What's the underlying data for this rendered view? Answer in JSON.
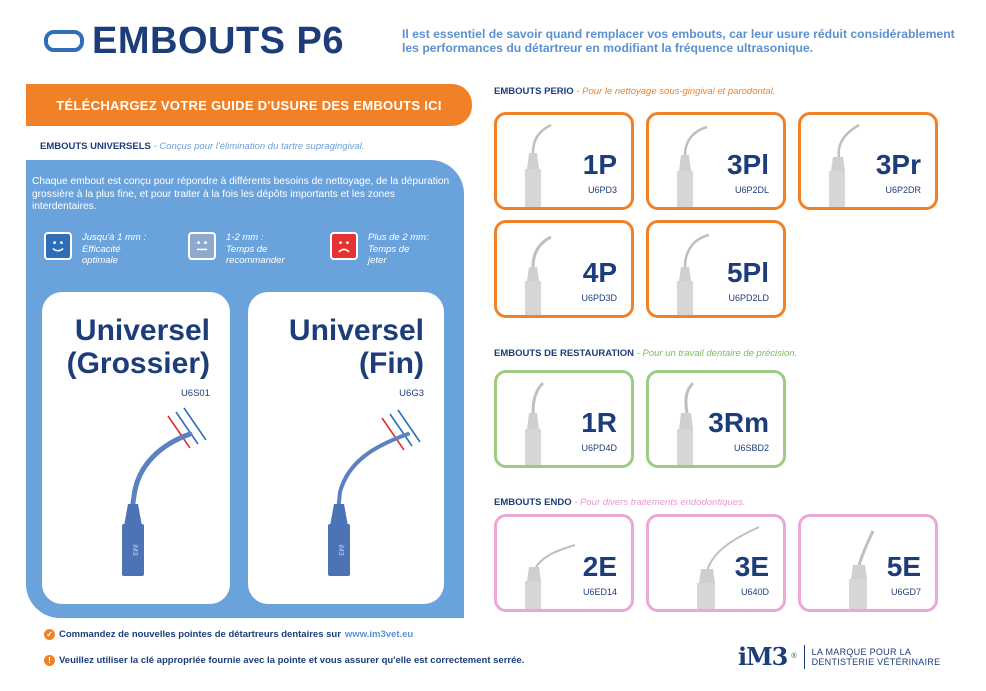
{
  "header": {
    "title": "EMBOUTS P6",
    "intro": "Il est essentiel de savoir quand remplacer vos embouts, car leur usure réduit considérablement les performances du détartreur en modifiant la fréquence ultrasonique."
  },
  "download_button": "TÉLÉCHARGEZ VOTRE GUIDE D'USURE DES EMBOUTS ICI",
  "universal": {
    "heading": "EMBOUTS UNIVERSELS",
    "subheading": "- Conçus pour l'élimination du tartre supragingival.",
    "description": "Chaque embout est conçu pour répondre à différents besoins de nettoyage, de la dépuration grossière à la plus fine, et pour traiter à la fois les dépôts importants et les zones interdentaires.",
    "wear_levels": [
      {
        "line1": "Jusqu'à 1 mm :",
        "line2": "Efficacité",
        "line3": "optimale",
        "color": "#2f6fb7"
      },
      {
        "line1": "1-2 mm :",
        "line2": "Temps de",
        "line3": "recommander",
        "color": "#8fa9cc"
      },
      {
        "line1": "Plus de 2 mm:",
        "line2": "Temps de",
        "line3": "jeter",
        "color": "#e53232"
      }
    ],
    "cards": [
      {
        "line1": "Universel",
        "line2": "(Grossier)",
        "code": "U6S01",
        "engraving": "iM3"
      },
      {
        "line1": "Universel",
        "line2": "(Fin)",
        "code": "U6G3",
        "engraving": "iM3"
      }
    ]
  },
  "perio": {
    "heading": "EMBOUTS PERIO",
    "subheading": "- Pour le nettoyage sous-gingival et parodontal.",
    "tips": [
      {
        "name": "1P",
        "code": "U6PD3"
      },
      {
        "name": "3Pl",
        "code": "U6P2DL"
      },
      {
        "name": "3Pr",
        "code": "U6P2DR"
      },
      {
        "name": "4P",
        "code": "U6PD3D"
      },
      {
        "name": "5Pl",
        "code": "U6PD2LD"
      }
    ]
  },
  "restoration": {
    "heading": "EMBOUTS DE RESTAURATION",
    "subheading": " - Pour un travail dentaire de précision.",
    "tips": [
      {
        "name": "1R",
        "code": "U6PD4D"
      },
      {
        "name": "3Rm",
        "code": "U6SBD2"
      }
    ]
  },
  "endo": {
    "heading": "EMBOUTS ENDO",
    "subheading": "- Pour divers traitements endodontiques.",
    "tips": [
      {
        "name": "2E",
        "code": "U6ED14"
      },
      {
        "name": "3E",
        "code": "U640D"
      },
      {
        "name": "5E",
        "code": "U6GD7"
      }
    ]
  },
  "footer": {
    "order_text": "Commandez de nouvelles pointes de détartreurs dentaires sur",
    "order_link": "www.im3vet.eu",
    "warning": "Veuillez utiliser la clé appropriée fournie avec la pointe et vous assurer qu'elle est correctement serrée.",
    "brand": "iM3",
    "brand_reg": "®",
    "brand_line1": "LA MARQUE POUR LA",
    "brand_line2": "DENTISTERIE VÉTÉRINAIRE"
  },
  "colors": {
    "navy": "#1c3d7a",
    "orange": "#f08127",
    "blue_panel": "#6aa3dc",
    "green": "#9ccc84",
    "pink": "#eaa8d9"
  }
}
